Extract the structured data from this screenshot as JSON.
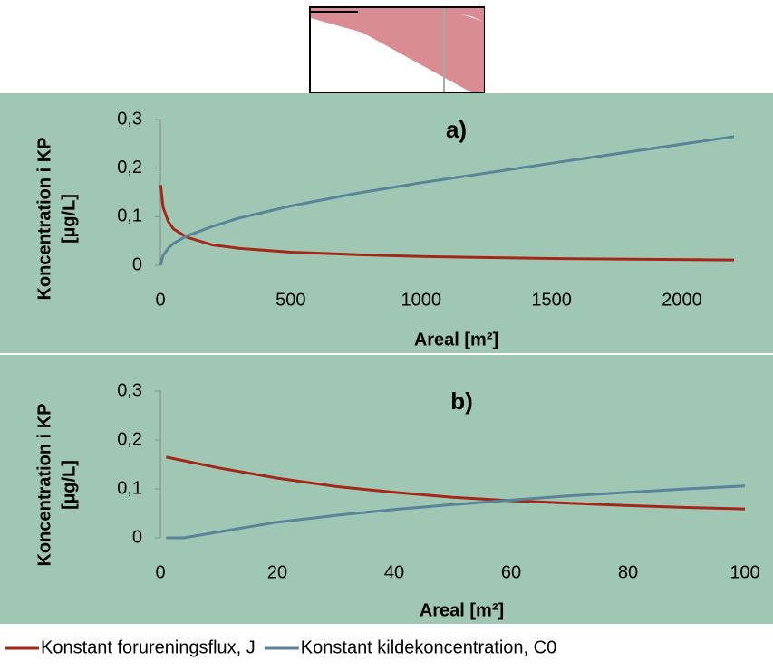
{
  "chart_data": [
    {
      "type": "line",
      "title": "a)",
      "xlabel": "Areal [m²]",
      "ylabel": [
        "Koncentration i KP",
        "[µg/L]"
      ],
      "xlim": [
        0,
        2200
      ],
      "ylim": [
        0,
        0.3
      ],
      "xticks": [
        0,
        500,
        1000,
        1500,
        2000
      ],
      "yticks": [
        {
          "value": 0,
          "label": "0"
        },
        {
          "value": 0.1,
          "label": "0,1"
        },
        {
          "value": 0.2,
          "label": "0,2"
        },
        {
          "value": 0.3,
          "label": "0,3"
        }
      ],
      "series": [
        {
          "name": "Konstant forureningsflux, J",
          "color": "#a3281a",
          "x": [
            1,
            10,
            30,
            50,
            100,
            200,
            300,
            500,
            750,
            1000,
            1500,
            2200
          ],
          "values": [
            0.165,
            0.12,
            0.09,
            0.075,
            0.058,
            0.042,
            0.035,
            0.027,
            0.022,
            0.018,
            0.014,
            0.011
          ]
        },
        {
          "name": "Konstant kildekoncentration, C0",
          "color": "#5a8498",
          "x": [
            0,
            10,
            30,
            50,
            100,
            200,
            300,
            500,
            750,
            1000,
            1500,
            2200
          ],
          "values": [
            0,
            0.02,
            0.035,
            0.045,
            0.06,
            0.08,
            0.097,
            0.122,
            0.148,
            0.17,
            0.21,
            0.265
          ]
        }
      ]
    },
    {
      "type": "line",
      "title": "b)",
      "xlabel": "Areal [m²]",
      "ylabel": [
        "Koncentration i KP",
        "[µg/L]"
      ],
      "xlim": [
        0,
        100
      ],
      "ylim": [
        0,
        0.3
      ],
      "xticks": [
        0,
        20,
        40,
        60,
        80,
        100
      ],
      "yticks": [
        {
          "value": 0,
          "label": "0"
        },
        {
          "value": 0.1,
          "label": "0,1"
        },
        {
          "value": 0.2,
          "label": "0,2"
        },
        {
          "value": 0.3,
          "label": "0,3"
        }
      ],
      "series": [
        {
          "color": "#a3281a",
          "x": [
            1,
            10,
            20,
            30,
            40,
            50,
            60,
            70,
            80,
            90,
            100
          ],
          "values": [
            0.165,
            0.143,
            0.122,
            0.105,
            0.093,
            0.083,
            0.076,
            0.071,
            0.066,
            0.062,
            0.059
          ]
        },
        {
          "color": "#5a8498",
          "x": [
            1,
            4,
            10,
            20,
            30,
            40,
            50,
            60,
            70,
            80,
            90,
            100
          ],
          "values": [
            0,
            0,
            0.012,
            0.032,
            0.046,
            0.058,
            0.068,
            0.077,
            0.086,
            0.093,
            0.1,
            0.106
          ]
        }
      ]
    }
  ]
}
